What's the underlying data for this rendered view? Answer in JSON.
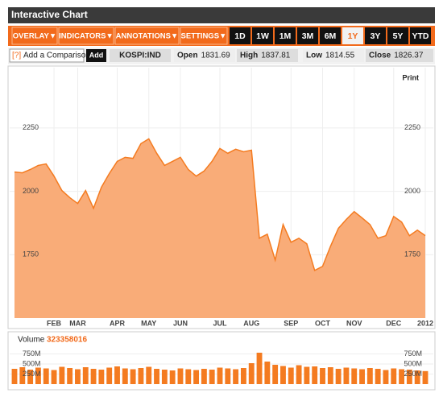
{
  "header": {
    "title": "Interactive Chart"
  },
  "toolbar": {
    "menus": [
      "OVERLAY▼",
      "INDICATORS▼",
      "ANNOTATIONS▼",
      "SETTINGS▼"
    ],
    "ranges": [
      "1D",
      "1W",
      "1M",
      "3M",
      "6M",
      "1Y",
      "3Y",
      "5Y",
      "YTD"
    ],
    "selected_range_index": 5
  },
  "comparison": {
    "help": "[?]",
    "placeholder": "Add a Comparison",
    "button": "Add",
    "symbol": "KOSPI:IND"
  },
  "quote": [
    {
      "label": "Open",
      "value": 1831.69
    },
    {
      "label": "High",
      "value": 1837.81
    },
    {
      "label": "Low",
      "value": 1814.55
    },
    {
      "label": "Close",
      "value": 1826.37
    }
  ],
  "print": "Print",
  "chart_data": [
    {
      "type": "area",
      "color": "#f47b20",
      "fill": "#f9ac78",
      "grid": true,
      "categories": [
        null,
        null,
        null,
        null,
        null,
        "FEB",
        null,
        null,
        "MAR",
        null,
        null,
        null,
        null,
        "APR",
        null,
        null,
        null,
        "MAY",
        null,
        null,
        null,
        "JUN",
        null,
        null,
        null,
        null,
        "JUL",
        null,
        null,
        null,
        "AUG",
        null,
        null,
        null,
        null,
        "SEP",
        null,
        null,
        null,
        "OCT",
        null,
        null,
        null,
        "NOV",
        null,
        null,
        null,
        null,
        "DEC",
        null,
        null,
        null,
        "2012"
      ],
      "values": [
        2076,
        2073,
        2086,
        2102,
        2108,
        2060,
        2003,
        1975,
        1952,
        2003,
        1933,
        2016,
        2070,
        2118,
        2134,
        2130,
        2188,
        2207,
        2150,
        2102,
        2118,
        2134,
        2086,
        2060,
        2080,
        2118,
        2169,
        2150,
        2166,
        2156,
        2162,
        1815,
        1831,
        1729,
        1869,
        1799,
        1815,
        1793,
        1688,
        1704,
        1783,
        1854,
        1889,
        1920,
        1895,
        1869,
        1815,
        1825,
        1901,
        1879,
        1825,
        1847,
        1825
      ],
      "ylim": [
        1500,
        2475
      ],
      "yticks": [
        1750,
        2000,
        2250
      ]
    },
    {
      "type": "bar",
      "title": "Volume",
      "last_value": 323358016,
      "color": "#f47b20",
      "values": [
        380000000,
        420000000,
        360000000,
        410000000,
        390000000,
        350000000,
        430000000,
        400000000,
        370000000,
        420000000,
        380000000,
        360000000,
        410000000,
        440000000,
        390000000,
        370000000,
        400000000,
        430000000,
        380000000,
        360000000,
        340000000,
        390000000,
        370000000,
        350000000,
        380000000,
        360000000,
        410000000,
        390000000,
        370000000,
        400000000,
        520000000,
        780000000,
        560000000,
        480000000,
        450000000,
        410000000,
        470000000,
        430000000,
        440000000,
        400000000,
        420000000,
        380000000,
        410000000,
        390000000,
        370000000,
        400000000,
        380000000,
        350000000,
        390000000,
        370000000,
        360000000,
        340000000,
        323358016
      ],
      "ylim": [
        0,
        900000000
      ],
      "yticks": [
        {
          "value": 250000000,
          "label": "250M"
        },
        {
          "value": 500000000,
          "label": "500M"
        },
        {
          "value": 750000000,
          "label": "750M"
        }
      ]
    }
  ]
}
